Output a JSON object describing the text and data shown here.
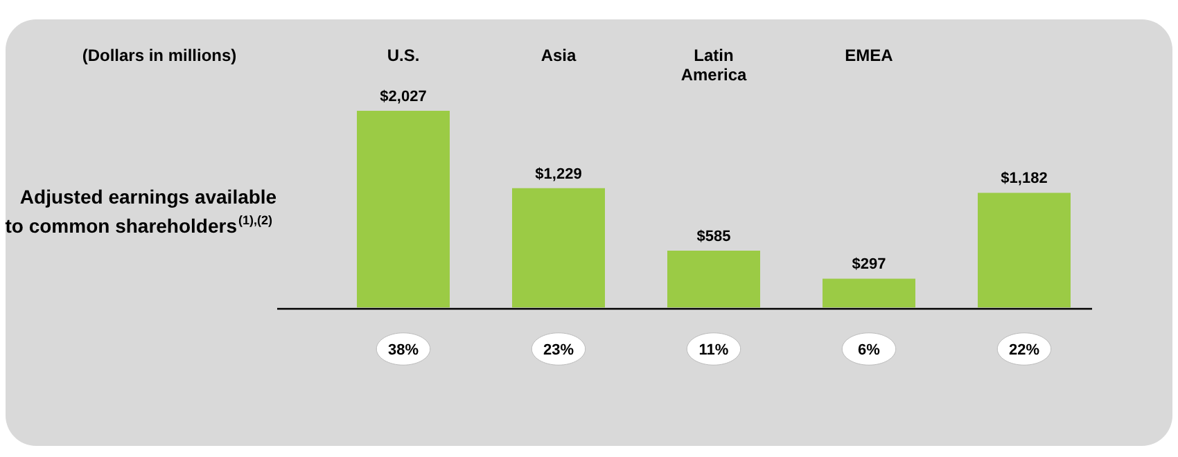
{
  "chart_data": {
    "type": "bar",
    "title": "(Dollars in millions)",
    "ylabel": "Adjusted earnings available\nto common shareholders$^{(1),(2)}$",
    "categories": [
      "U.S.",
      "Asia",
      "Latin America",
      "EMEA",
      null
    ],
    "values": [
      2027,
      1229,
      585,
      297,
      1182
    ],
    "value_labels": [
      "$2,027",
      "$1,229",
      "$585",
      "$297",
      "$1,182"
    ],
    "color": "#9bcb45",
    "annotations": [
      "38%",
      "23%",
      "11%",
      "6%",
      "22%"
    ]
  }
}
